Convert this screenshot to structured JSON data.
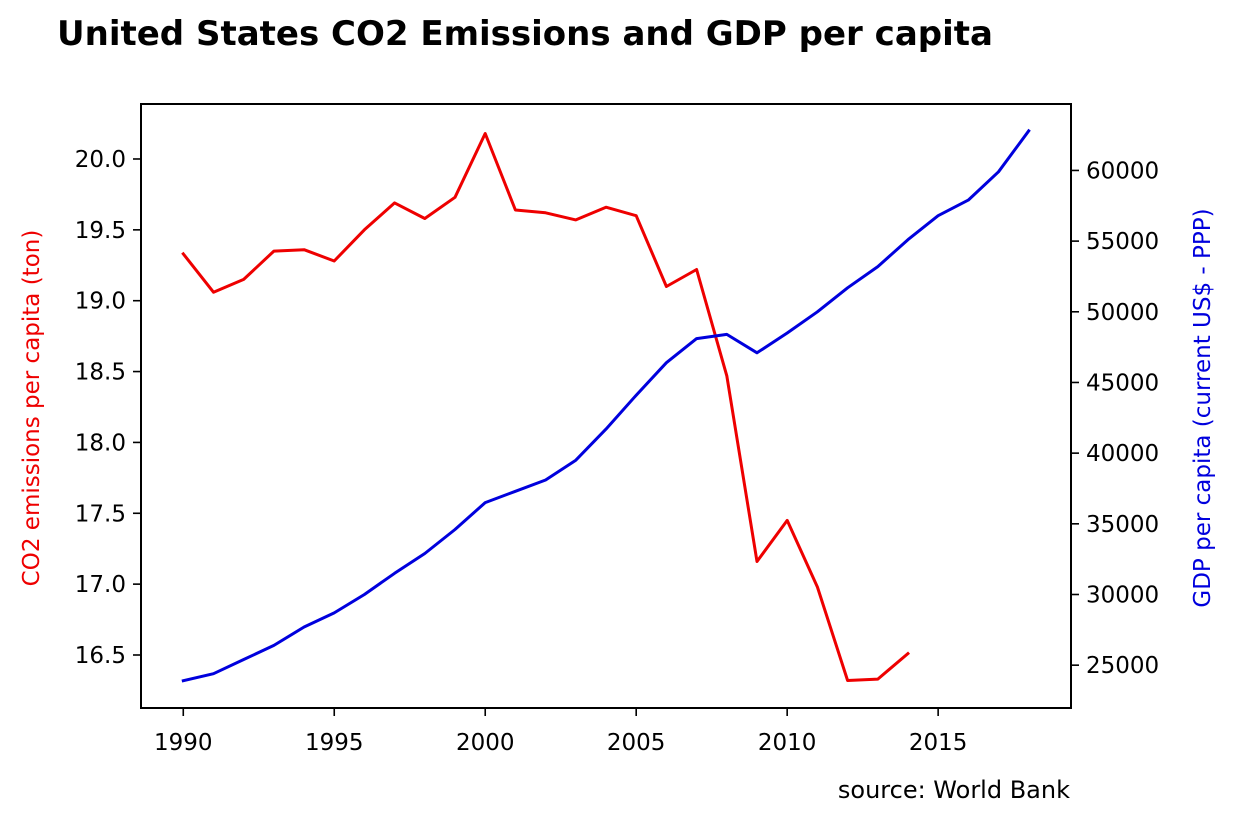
{
  "chart_data": {
    "type": "line",
    "title": "United States CO2 Emissions and GDP per capita",
    "source": "source: World Bank",
    "x": [
      1990,
      1991,
      1992,
      1993,
      1994,
      1995,
      1996,
      1997,
      1998,
      1999,
      2000,
      2001,
      2002,
      2003,
      2004,
      2005,
      2006,
      2007,
      2008,
      2009,
      2010,
      2011,
      2012,
      2013,
      2014,
      2015,
      2016,
      2017,
      2018
    ],
    "xlim": [
      1988.6,
      2019.4
    ],
    "xticks": [
      1990,
      1995,
      2000,
      2005,
      2010,
      2015
    ],
    "left_axis": {
      "label": "CO2 emissions per capita (ton)",
      "color": "#ee0000",
      "ylim": [
        16.126,
        20.388
      ],
      "ticks": [
        "16.5",
        "17.0",
        "17.5",
        "18.0",
        "18.5",
        "19.0",
        "19.5",
        "20.0"
      ]
    },
    "right_axis": {
      "label": "GDP per capita (current US$ - PPP)",
      "color": "#0000dd",
      "ylim": [
        21970,
        64700
      ],
      "ticks": [
        "25000",
        "30000",
        "35000",
        "40000",
        "45000",
        "50000",
        "55000",
        "60000"
      ]
    },
    "series": [
      {
        "axis": "left",
        "color": "#ee0000",
        "x": [
          1990,
          1991,
          1992,
          1993,
          1994,
          1995,
          1996,
          1997,
          1998,
          1999,
          2000,
          2001,
          2002,
          2003,
          2004,
          2005,
          2006,
          2007,
          2008,
          2009,
          2010,
          2011,
          2012,
          2013,
          2014
        ],
        "values": [
          19.33,
          19.06,
          19.15,
          19.35,
          19.36,
          19.28,
          19.5,
          19.69,
          19.58,
          19.73,
          20.18,
          19.64,
          19.62,
          19.57,
          19.66,
          19.6,
          19.1,
          19.22,
          18.47,
          17.16,
          17.45,
          16.98,
          16.32,
          16.33,
          16.51
        ]
      },
      {
        "axis": "right",
        "color": "#0000dd",
        "x": [
          1990,
          1991,
          1992,
          1993,
          1994,
          1995,
          1996,
          1997,
          1998,
          1999,
          2000,
          2001,
          2002,
          2003,
          2004,
          2005,
          2006,
          2007,
          2008,
          2009,
          2010,
          2011,
          2012,
          2013,
          2014,
          2015,
          2016,
          2017,
          2018
        ],
        "values": [
          23900,
          24400,
          25400,
          26400,
          27700,
          28700,
          30000,
          31500,
          32900,
          34600,
          36500,
          37300,
          38100,
          39500,
          41700,
          44100,
          46400,
          48100,
          48400,
          47100,
          48500,
          50000,
          51700,
          53200,
          55100,
          56800,
          57900,
          59900,
          62800
        ]
      }
    ]
  }
}
